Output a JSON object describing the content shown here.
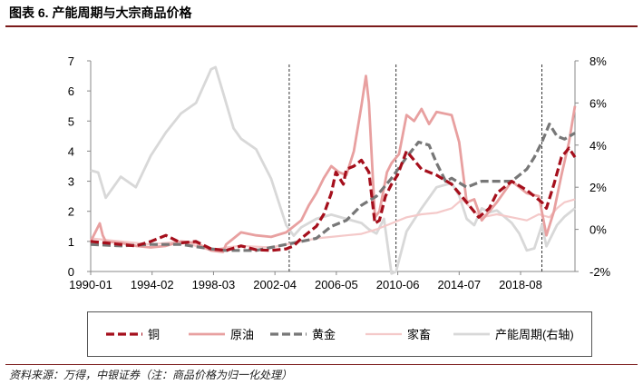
{
  "header": {
    "title": "图表 6. 产能周期与大宗商品价格"
  },
  "footer": {
    "source": "资料来源：万得，中银证券（注：商品价格为归一化处理）"
  },
  "chart_data": {
    "type": "line",
    "x_tick_labels": [
      "1990-01",
      "1994-02",
      "1998-03",
      "2002-04",
      "2006-05",
      "2010-06",
      "2014-07",
      "2018-08"
    ],
    "x_range": [
      1990.0,
      2022.2
    ],
    "y_left": {
      "range": [
        0,
        7
      ],
      "ticks": [
        "0",
        "1",
        "2",
        "3",
        "4",
        "5",
        "6",
        "7"
      ]
    },
    "y_right": {
      "range": [
        -2,
        8
      ],
      "ticks": [
        "-2%",
        "0%",
        "2%",
        "4%",
        "6%",
        "8%"
      ],
      "label": ""
    },
    "vlines": [
      2003.2,
      2010.3,
      2020.0
    ],
    "legend_position": "bottom",
    "series": [
      {
        "name": "铜",
        "axis": "left",
        "color": "#a50f1c",
        "style": "dashed-bold",
        "x": [
          1990,
          1991,
          1992,
          1993,
          1994,
          1995,
          1996,
          1997,
          1998,
          1999,
          2000,
          2001,
          2002,
          2003,
          2003.5,
          2004,
          2004.5,
          2005,
          2005.5,
          2006,
          2006.3,
          2006.8,
          2007,
          2007.5,
          2008,
          2008.5,
          2008.9,
          2009.2,
          2009.6,
          2010,
          2010.4,
          2011,
          2011.5,
          2012,
          2013,
          2014,
          2015,
          2015.8,
          2016.5,
          2017,
          2018,
          2019,
          2020,
          2020.3,
          2020.8,
          2021.3,
          2021.8,
          2022.2
        ],
        "y": [
          1.0,
          0.95,
          0.9,
          0.85,
          1.0,
          1.2,
          0.95,
          1.0,
          0.75,
          0.7,
          0.85,
          0.72,
          0.7,
          0.75,
          0.85,
          1.1,
          1.3,
          1.5,
          1.9,
          2.6,
          3.3,
          2.9,
          3.4,
          3.5,
          3.7,
          3.3,
          1.6,
          1.7,
          2.5,
          2.9,
          3.2,
          4.0,
          3.7,
          3.4,
          3.2,
          2.9,
          2.3,
          1.8,
          2.1,
          2.6,
          3.0,
          2.7,
          2.3,
          2.1,
          2.9,
          3.8,
          4.1,
          3.8
        ]
      },
      {
        "name": "原油",
        "axis": "left",
        "color": "#e8a0a0",
        "style": "solid-bold",
        "x": [
          1990,
          1990.6,
          1990.8,
          1991,
          1992,
          1993,
          1994,
          1995,
          1996,
          1997,
          1998,
          1998.8,
          1999,
          2000,
          2001,
          2002,
          2003,
          2004,
          2004.5,
          2005,
          2005.5,
          2006,
          2006.5,
          2007,
          2007.5,
          2008,
          2008.3,
          2008.5,
          2008.9,
          2009.2,
          2009.7,
          2010,
          2010.5,
          2011,
          2011.5,
          2012,
          2012.5,
          2013,
          2014,
          2014.5,
          2015,
          2015.5,
          2016,
          2017,
          2018,
          2019,
          2019.8,
          2020.3,
          2020.8,
          2021.3,
          2021.8,
          2022.2
        ],
        "y": [
          1.0,
          1.6,
          1.2,
          1.0,
          0.95,
          0.85,
          0.8,
          0.85,
          1.0,
          0.95,
          0.7,
          0.65,
          0.9,
          1.3,
          1.2,
          1.15,
          1.3,
          1.7,
          2.2,
          2.6,
          3.1,
          3.5,
          3.3,
          3.2,
          4.0,
          5.5,
          6.5,
          5.6,
          1.8,
          2.0,
          3.3,
          3.6,
          3.9,
          5.2,
          5.0,
          5.4,
          4.9,
          5.3,
          5.2,
          4.3,
          2.3,
          2.4,
          1.7,
          2.3,
          3.0,
          2.6,
          2.5,
          1.2,
          2.0,
          3.2,
          4.3,
          5.5
        ]
      },
      {
        "name": "黄金",
        "axis": "left",
        "color": "#777777",
        "style": "dashed-bold",
        "x": [
          1990,
          1992,
          1994,
          1996,
          1998,
          1999,
          2000,
          2001,
          2002,
          2003,
          2004,
          2005,
          2006,
          2007,
          2008,
          2009,
          2010,
          2011,
          2011.8,
          2012.5,
          2013,
          2013.6,
          2014,
          2015,
          2016,
          2017,
          2018,
          2019,
          2019.5,
          2020,
          2020.5,
          2021,
          2021.5,
          2022.2
        ],
        "y": [
          0.9,
          0.85,
          0.9,
          0.9,
          0.75,
          0.7,
          0.7,
          0.7,
          0.8,
          0.9,
          1.0,
          1.1,
          1.5,
          1.7,
          2.2,
          2.5,
          3.1,
          3.8,
          4.3,
          4.2,
          3.6,
          3.0,
          3.1,
          2.8,
          3.0,
          3.0,
          3.0,
          3.4,
          3.8,
          4.3,
          4.9,
          4.5,
          4.4,
          4.6
        ]
      },
      {
        "name": "家畜",
        "axis": "left",
        "color": "#f4c9c9",
        "style": "solid",
        "x": [
          1990,
          1992,
          1994,
          1996,
          1998,
          1999,
          2000,
          2002,
          2003,
          2004,
          2005,
          2006,
          2007,
          2008,
          2009,
          2010,
          2011,
          2012,
          2013,
          2014,
          2014.7,
          2015.5,
          2016,
          2017,
          2018,
          2019,
          2019.8,
          2020.5,
          2021,
          2021.5,
          2022.2
        ],
        "y": [
          1.1,
          1.0,
          0.9,
          1.0,
          0.7,
          0.8,
          0.85,
          0.8,
          0.9,
          1.0,
          1.1,
          1.15,
          1.2,
          1.25,
          1.4,
          1.6,
          1.8,
          1.9,
          1.95,
          2.1,
          2.4,
          2.0,
          1.8,
          1.9,
          1.8,
          1.7,
          1.9,
          1.8,
          2.1,
          2.3,
          2.4
        ]
      },
      {
        "name": "产能周期(右轴)",
        "axis": "right",
        "color": "#d8d8d8",
        "style": "solid-bold",
        "x": [
          1990,
          1990.5,
          1991,
          1992,
          1993,
          1994,
          1995,
          1996,
          1997,
          1998,
          1998.3,
          1998.8,
          1999.5,
          2000,
          2001,
          2002,
          2003,
          2003.5,
          2004,
          2005,
          2006,
          2007,
          2008,
          2008.5,
          2009,
          2009.5,
          2010,
          2010.3,
          2011,
          2012,
          2013,
          2014,
          2014.5,
          2015,
          2015.5,
          2016,
          2016.5,
          2017,
          2018,
          2018.5,
          2019,
          2019.5,
          2020,
          2020.3,
          2021,
          2021.5,
          2022.2
        ],
        "y": [
          2.8,
          2.7,
          1.5,
          2.5,
          2.0,
          3.5,
          4.6,
          5.5,
          6.0,
          7.6,
          7.7,
          6.5,
          4.8,
          4.3,
          3.8,
          2.4,
          0.2,
          -0.3,
          0.1,
          0.5,
          0.7,
          0.5,
          0.3,
          0.0,
          -0.2,
          0.5,
          -2.1,
          -2.0,
          -0.1,
          1.0,
          2.0,
          2.2,
          1.6,
          0.5,
          0.2,
          1.0,
          0.8,
          0.9,
          0.3,
          -0.2,
          -1.0,
          -0.9,
          0.2,
          -0.8,
          0.2,
          0.6,
          1.0
        ]
      }
    ]
  }
}
